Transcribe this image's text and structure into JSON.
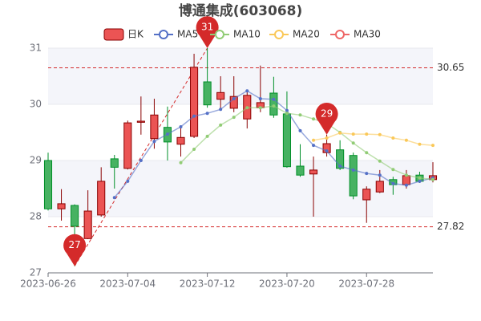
{
  "chart_data": {
    "type": "candlestick",
    "title": "博通集成(603068)",
    "categories": [
      "2023-06-26",
      null,
      null,
      null,
      null,
      null,
      "2023-07-04",
      null,
      null,
      null,
      null,
      null,
      "2023-07-12",
      null,
      null,
      null,
      null,
      null,
      "2023-07-20",
      null,
      null,
      null,
      null,
      null,
      "2023-07-28",
      null,
      null,
      null,
      null,
      null
    ],
    "candle_name": "日K",
    "up_color": "#eb5454",
    "down_color": "#47b262",
    "open": [
      29.0,
      28.14,
      28.2,
      27.61,
      28.03,
      29.03,
      28.86,
      29.68,
      29.39,
      29.59,
      29.29,
      29.43,
      30.4,
      30.09,
      29.93,
      29.74,
      29.94,
      30.2,
      29.83,
      28.9,
      28.76,
      29.14,
      29.19,
      29.09,
      28.3,
      28.44,
      28.66,
      28.57,
      28.74,
      28.66
    ],
    "close": [
      28.14,
      28.23,
      27.83,
      28.1,
      28.63,
      28.88,
      29.67,
      29.7,
      29.81,
      29.33,
      29.41,
      30.66,
      29.99,
      30.21,
      30.14,
      30.16,
      30.03,
      29.81,
      28.89,
      28.74,
      28.83,
      29.3,
      28.86,
      28.37,
      28.49,
      28.63,
      28.57,
      28.73,
      28.63,
      28.73
    ],
    "high": [
      29.14,
      28.49,
      28.22,
      28.47,
      28.88,
      29.1,
      29.71,
      30.14,
      30.1,
      29.96,
      29.61,
      30.9,
      31.0,
      30.5,
      30.5,
      30.24,
      30.69,
      30.49,
      30.23,
      29.29,
      29.07,
      29.46,
      29.36,
      29.14,
      28.54,
      28.83,
      28.71,
      28.83,
      28.8,
      28.97
    ],
    "low": [
      28.11,
      27.93,
      27.12,
      27.6,
      28.0,
      28.5,
      28.84,
      29.46,
      29.21,
      29.0,
      29.07,
      29.4,
      29.94,
      29.89,
      29.86,
      29.57,
      29.86,
      29.76,
      28.87,
      28.71,
      28.0,
      29.07,
      28.83,
      28.31,
      27.89,
      28.42,
      28.39,
      28.5,
      28.6,
      28.61
    ],
    "series": [
      {
        "name": "MA5",
        "color": "#5470c6",
        "values": [
          null,
          null,
          null,
          null,
          null,
          28.34,
          28.63,
          29.0,
          29.34,
          29.47,
          29.6,
          29.79,
          29.84,
          29.91,
          30.1,
          30.24,
          30.1,
          30.09,
          29.89,
          29.53,
          29.27,
          29.17,
          28.9,
          28.83,
          28.77,
          28.74,
          28.59,
          28.56,
          28.63,
          28.69
        ]
      },
      {
        "name": "MA10",
        "color": "#91cc75",
        "values": [
          null,
          null,
          null,
          null,
          null,
          null,
          null,
          null,
          null,
          null,
          28.96,
          29.2,
          29.43,
          29.63,
          29.77,
          29.94,
          29.94,
          29.97,
          29.84,
          29.81,
          29.74,
          29.66,
          29.5,
          29.31,
          29.14,
          28.99,
          28.84,
          28.74,
          28.69,
          28.66
        ]
      },
      {
        "name": "MA20",
        "color": "#fac858",
        "values": [
          null,
          null,
          null,
          null,
          null,
          null,
          null,
          null,
          null,
          null,
          null,
          null,
          null,
          null,
          null,
          null,
          null,
          null,
          null,
          null,
          29.36,
          29.4,
          29.49,
          29.47,
          29.47,
          29.46,
          29.4,
          29.36,
          29.29,
          29.27
        ]
      },
      {
        "name": "MA30",
        "color": "#ee6666",
        "values": [
          null,
          null,
          null,
          null,
          null,
          null,
          null,
          null,
          null,
          null,
          null,
          null,
          null,
          null,
          null,
          null,
          null,
          null,
          null,
          null,
          null,
          null,
          null,
          null,
          null,
          null,
          null,
          null,
          null,
          null
        ]
      }
    ],
    "mark_points": [
      {
        "category_index": 2,
        "value": 27.12,
        "label": "27"
      },
      {
        "category_index": 12,
        "value": 31.0,
        "label": "31"
      },
      {
        "category_index": 21,
        "value": 29.46,
        "label": "29"
      }
    ],
    "mark_lines": [
      30.65,
      27.82
    ],
    "mark_color": "#d42a2a",
    "ylim": [
      27,
      31
    ],
    "yticks": [
      27,
      28,
      29,
      30,
      31
    ],
    "split_area": true
  }
}
